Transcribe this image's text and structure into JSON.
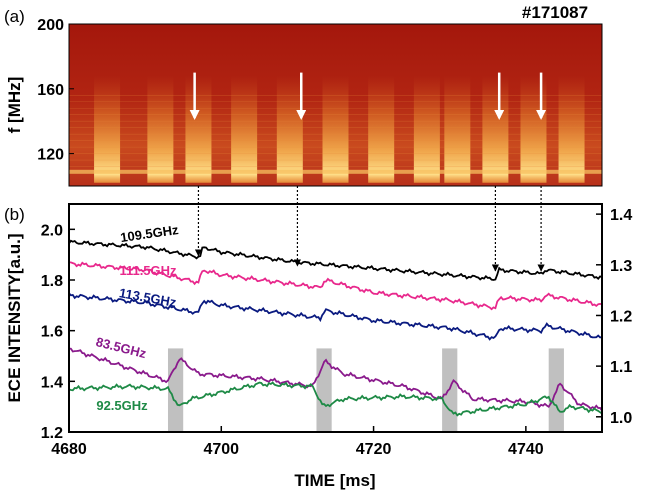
{
  "chart_data": [
    {
      "panel": "(a)",
      "type": "heatmap",
      "title": "#171087",
      "ylabel": "f [MHz]",
      "yticks": [
        "200",
        "160",
        "120"
      ],
      "ylim": [
        100,
        200
      ],
      "xlim": [
        4680,
        4750
      ],
      "bursts_ms": [
        4685,
        4692,
        4697,
        4703,
        4709,
        4715,
        4721,
        4727,
        4731,
        4736,
        4741,
        4746
      ],
      "arrows_ms": [
        4696.5,
        4710.5,
        4736.5,
        4742
      ]
    },
    {
      "panel": "(b)",
      "type": "line",
      "xlabel": "TIME [ms]",
      "ylabel": "ECE INTENSITY[a.u.]",
      "xlim": [
        4680,
        4750
      ],
      "ylim": [
        1.2,
        2.1
      ],
      "y2lim": [
        0.97,
        1.42
      ],
      "xticks": [
        "4680",
        "4700",
        "4720",
        "4740"
      ],
      "yticks": [
        "1.2",
        "1.4",
        "1.6",
        "1.8",
        "2.0"
      ],
      "y2ticks": [
        "1.0",
        "1.1",
        "1.2",
        "1.3",
        "1.4"
      ],
      "shaded_ms": [
        [
          4693,
          4695
        ],
        [
          4712.5,
          4714.5
        ],
        [
          4729,
          4731
        ],
        [
          4743,
          4745
        ]
      ],
      "dotted_arrows_ms": [
        4697,
        4710,
        4736,
        4742
      ],
      "series": [
        {
          "name": "109.5GHz",
          "color": "#000000",
          "axis": "right",
          "x": [
            4680,
            4690,
            4697.2,
            4697.6,
            4700,
            4710,
            4720,
            4730,
            4736,
            4736.5,
            4740,
            4742,
            4742.6,
            4750
          ],
          "y": [
            1.345,
            1.335,
            1.315,
            1.335,
            1.325,
            1.305,
            1.293,
            1.28,
            1.272,
            1.29,
            1.285,
            1.282,
            1.29,
            1.275
          ]
        },
        {
          "name": "111.5GHz",
          "color": "#e8288c",
          "axis": "left",
          "x": [
            4680,
            4690,
            4697,
            4697.6,
            4700,
            4713,
            4713.6,
            4720,
            4730,
            4736,
            4736.6,
            4742,
            4742.6,
            4750
          ],
          "y": [
            1.865,
            1.84,
            1.79,
            1.84,
            1.82,
            1.77,
            1.8,
            1.75,
            1.72,
            1.69,
            1.73,
            1.72,
            1.74,
            1.7
          ]
        },
        {
          "name": "113.5GHz",
          "color": "#0a1a80",
          "axis": "left",
          "x": [
            4680,
            4690,
            4697,
            4697.6,
            4700,
            4713,
            4713.6,
            4720,
            4730,
            4736,
            4736.6,
            4742,
            4742.6,
            4750
          ],
          "y": [
            1.74,
            1.71,
            1.67,
            1.72,
            1.7,
            1.65,
            1.68,
            1.64,
            1.61,
            1.57,
            1.61,
            1.6,
            1.62,
            1.57
          ]
        },
        {
          "name": "83.5GHz",
          "color": "#8a1a8c",
          "axis": "left",
          "x": [
            4680,
            4686,
            4693,
            4694.5,
            4697,
            4705,
            4712,
            4713.6,
            4716,
            4724,
            4729,
            4730.5,
            4733,
            4740,
            4743,
            4744.5,
            4747,
            4750
          ],
          "y": [
            1.53,
            1.47,
            1.4,
            1.49,
            1.43,
            1.41,
            1.38,
            1.48,
            1.43,
            1.38,
            1.33,
            1.4,
            1.33,
            1.32,
            1.3,
            1.39,
            1.31,
            1.29
          ]
        },
        {
          "name": "92.5GHz",
          "color": "#1e8a46",
          "axis": "left",
          "x": [
            4680,
            4688,
            4693,
            4694.5,
            4696,
            4705,
            4712,
            4713.4,
            4716,
            4724,
            4729,
            4730.4,
            4735,
            4740,
            4743,
            4744.4,
            4746,
            4750
          ],
          "y": [
            1.37,
            1.38,
            1.37,
            1.3,
            1.33,
            1.39,
            1.38,
            1.3,
            1.33,
            1.34,
            1.33,
            1.27,
            1.29,
            1.31,
            1.34,
            1.28,
            1.3,
            1.28
          ]
        }
      ]
    }
  ]
}
